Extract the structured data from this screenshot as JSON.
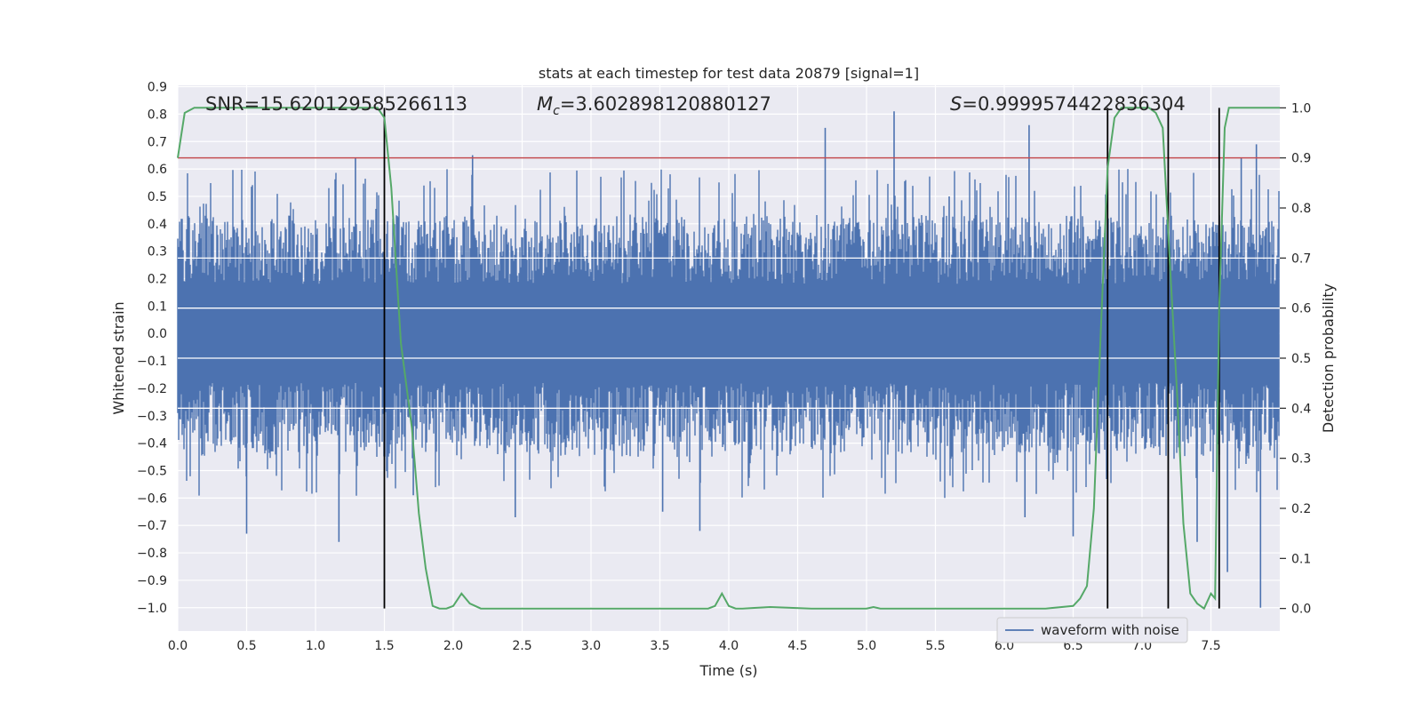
{
  "chart_data": {
    "type": "line",
    "title": "stats at each timestep for test data 20879 [signal=1]",
    "xlabel": "Time (s)",
    "ylabel_left": "Whitened strain",
    "ylabel_right": "Detection probability",
    "xlim": [
      0.0,
      8.0
    ],
    "ylim_left": [
      -1.085,
      0.905
    ],
    "ylim_right": [
      -0.045,
      1.045
    ],
    "x_ticks": [
      "0.0",
      "0.5",
      "1.0",
      "1.5",
      "2.0",
      "2.5",
      "3.0",
      "3.5",
      "4.0",
      "4.5",
      "5.0",
      "5.5",
      "6.0",
      "6.5",
      "7.0",
      "7.5"
    ],
    "x_tick_values": [
      0.0,
      0.5,
      1.0,
      1.5,
      2.0,
      2.5,
      3.0,
      3.5,
      4.0,
      4.5,
      5.0,
      5.5,
      6.0,
      6.5,
      7.0,
      7.5
    ],
    "y_left_ticks": [
      "0.9",
      "0.8",
      "0.7",
      "0.6",
      "0.5",
      "0.4",
      "0.3",
      "0.2",
      "0.1",
      "0.0",
      "−0.1",
      "−0.2",
      "−0.3",
      "−0.4",
      "−0.5",
      "−0.6",
      "−0.7",
      "−0.8",
      "−0.9",
      "−1.0"
    ],
    "y_left_tick_values": [
      0.9,
      0.8,
      0.7,
      0.6,
      0.5,
      0.4,
      0.3,
      0.2,
      0.1,
      0.0,
      -0.1,
      -0.2,
      -0.3,
      -0.4,
      -0.5,
      -0.6,
      -0.7,
      -0.8,
      -0.9,
      -1.0
    ],
    "y_right_ticks": [
      "1.0",
      "0.9",
      "0.8",
      "0.7",
      "0.6",
      "0.5",
      "0.4",
      "0.3",
      "0.2",
      "0.1",
      "0.0"
    ],
    "y_right_tick_values": [
      1.0,
      0.9,
      0.8,
      0.7,
      0.6,
      0.5,
      0.4,
      0.3,
      0.2,
      0.1,
      0.0
    ],
    "annotations": {
      "snr": "SNR=15.620129585266113",
      "mc_symbol": "M",
      "mc_sub": "c",
      "mc_value": "=3.602898120880127",
      "s_symbol": "S",
      "s_value": "=0.9999574422836304"
    },
    "threshold_right": 0.9,
    "vertical_lines_x": [
      1.5,
      6.75,
      7.19,
      7.56
    ],
    "series": [
      {
        "name": "waveform with noise",
        "color": "#4c72b0",
        "envelope": {
          "typical_max": 0.3,
          "typical_min": -0.32,
          "spike_max": 0.81,
          "spike_min": -1.0
        },
        "spikes": [
          [
            0.5,
            -0.73
          ],
          [
            1.17,
            -0.76
          ],
          [
            1.29,
            0.64
          ],
          [
            1.52,
            -0.43
          ],
          [
            1.71,
            -0.59
          ],
          [
            2.14,
            0.65
          ],
          [
            2.45,
            -0.67
          ],
          [
            3.52,
            -0.65
          ],
          [
            3.79,
            -0.72
          ],
          [
            4.7,
            0.75
          ],
          [
            5.2,
            0.81
          ],
          [
            5.6,
            0.5
          ],
          [
            6.15,
            -0.67
          ],
          [
            6.18,
            0.76
          ],
          [
            6.5,
            -0.74
          ],
          [
            7.4,
            -0.76
          ],
          [
            7.62,
            -0.87
          ],
          [
            7.72,
            0.64
          ],
          [
            7.83,
            0.69
          ],
          [
            7.86,
            -1.0
          ]
        ],
        "legend": true
      },
      {
        "name": "detection probability",
        "color": "#55a868",
        "axis": "right",
        "x": [
          0.0,
          0.05,
          0.12,
          0.3,
          0.6,
          0.9,
          1.2,
          1.45,
          1.5,
          1.55,
          1.62,
          1.7,
          1.75,
          1.8,
          1.85,
          1.9,
          1.95,
          2.0,
          2.06,
          2.12,
          2.2,
          2.3,
          2.6,
          3.0,
          3.3,
          3.6,
          3.85,
          3.9,
          3.95,
          4.0,
          4.05,
          4.1,
          4.3,
          4.6,
          5.0,
          5.05,
          5.1,
          5.5,
          6.0,
          6.3,
          6.5,
          6.55,
          6.6,
          6.65,
          6.7,
          6.75,
          6.8,
          6.85,
          6.9,
          7.0,
          7.05,
          7.1,
          7.15,
          7.2,
          7.25,
          7.3,
          7.35,
          7.4,
          7.45,
          7.5,
          7.53,
          7.56,
          7.6,
          7.63,
          7.8,
          8.0
        ],
        "y": [
          0.9,
          0.99,
          1.0,
          1.0,
          1.0,
          1.0,
          1.0,
          1.0,
          0.98,
          0.84,
          0.53,
          0.36,
          0.19,
          0.08,
          0.005,
          0.0,
          0.0,
          0.005,
          0.03,
          0.01,
          0.0,
          0.0,
          0.0,
          0.0,
          0.0,
          0.0,
          0.0,
          0.005,
          0.03,
          0.005,
          0.0,
          0.0,
          0.003,
          0.0,
          0.0,
          0.003,
          0.0,
          0.0,
          0.0,
          0.0,
          0.005,
          0.02,
          0.045,
          0.2,
          0.55,
          0.88,
          0.98,
          1.0,
          1.0,
          1.0,
          1.0,
          0.99,
          0.96,
          0.7,
          0.45,
          0.17,
          0.03,
          0.01,
          0.0,
          0.03,
          0.02,
          0.6,
          0.96,
          1.0,
          1.0,
          1.0
        ]
      }
    ],
    "legend_entries": [
      "waveform with noise"
    ],
    "legend_placement": "lower right"
  }
}
